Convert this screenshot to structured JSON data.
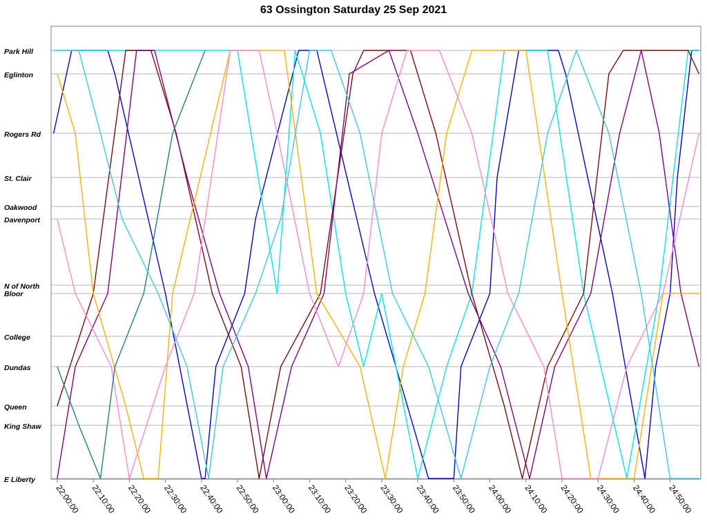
{
  "chart_data": {
    "type": "line",
    "title": "63 Ossington Saturday 25 Sep 2021",
    "xlabel": "",
    "ylabel": "",
    "x_ticks": [
      "22:00:00",
      "22:10:00",
      "22:20:00",
      "22:30:00",
      "22:40:00",
      "22:50:00",
      "23:00:00",
      "23:10:00",
      "23:20:00",
      "23:30:00",
      "23:40:00",
      "23:50:00",
      "24:00:00",
      "24:10:00",
      "24:20:00",
      "24:30:00",
      "24:40:00",
      "24:50:00"
    ],
    "xlim": [
      "22:00:00",
      "24:58:00"
    ],
    "stops": [
      "Park Hill",
      "Eglinton",
      "Rogers Rd",
      "St. Clair",
      "Oakwood",
      "Davenport",
      "N of North",
      "Bloor",
      "College",
      "Dundas",
      "Queen",
      "King Shaw",
      "E Liberty"
    ],
    "grid": true,
    "legend": "none",
    "series_colors": [
      "#0000cd",
      "#00e5ee",
      "#7b0b0b",
      "#7f007f",
      "#ffb000",
      "#ff88cc",
      "#1e8080",
      "#3cc8e0"
    ],
    "series": [
      {
        "color": "#0000cd",
        "points": [
          [
            "21:59:00",
            "Rogers Rd"
          ],
          [
            "22:04:00",
            "Park Hill"
          ],
          [
            "22:14:00",
            "Park Hill"
          ],
          [
            "22:16:00",
            "Eglinton"
          ],
          [
            "22:30:00",
            "Bloor"
          ],
          [
            "22:40:00",
            "E Liberty"
          ],
          [
            "22:41:00",
            "E Liberty"
          ],
          [
            "22:44:00",
            "Dundas"
          ],
          [
            "22:52:00",
            "Bloor"
          ],
          [
            "22:55:00",
            "Davenport"
          ],
          [
            "23:07:00",
            "Park Hill"
          ],
          [
            "23:12:00",
            "Park Hill"
          ],
          [
            "23:28:00",
            "Bloor"
          ],
          [
            "23:43:00",
            "E Liberty"
          ],
          [
            "23:50:00",
            "E Liberty"
          ],
          [
            "23:52:00",
            "Dundas"
          ],
          [
            "24:00:00",
            "Bloor"
          ],
          [
            "24:02:00",
            "St. Clair"
          ],
          [
            "24:08:00",
            "Park Hill"
          ],
          [
            "24:19:00",
            "Park Hill"
          ],
          [
            "24:21:00",
            "Eglinton"
          ],
          [
            "24:34:00",
            "Bloor"
          ],
          [
            "24:43:00",
            "E Liberty"
          ],
          [
            "24:46:00",
            "Dundas"
          ],
          [
            "24:50:00",
            "Bloor"
          ],
          [
            "24:52:00",
            "St. Clair"
          ],
          [
            "24:56:00",
            "Park Hill"
          ],
          [
            "24:58:00",
            "Park Hill"
          ]
        ]
      },
      {
        "color": "#00e5ee",
        "points": [
          [
            "21:59:00",
            "Park Hill"
          ],
          [
            "22:40:00",
            "Park Hill"
          ],
          [
            "22:50:00",
            "Park Hill"
          ],
          [
            "23:01:00",
            "Bloor"
          ],
          [
            "23:06:00",
            "Park Hill"
          ],
          [
            "23:13:00",
            "Rogers Rd"
          ],
          [
            "23:20:00",
            "Bloor"
          ],
          [
            "23:25:00",
            "Dundas"
          ],
          [
            "23:30:00",
            "Bloor"
          ],
          [
            "23:40:00",
            "E Liberty"
          ],
          [
            "23:48:00",
            "Dundas"
          ],
          [
            "23:55:00",
            "Bloor"
          ],
          [
            "24:04:00",
            "Park Hill"
          ],
          [
            "24:16:00",
            "Park Hill"
          ],
          [
            "24:26:00",
            "Bloor"
          ],
          [
            "24:38:00",
            "E Liberty"
          ],
          [
            "24:47:00",
            "Bloor"
          ],
          [
            "24:55:00",
            "Park Hill"
          ],
          [
            "24:58:00",
            "Park Hill"
          ]
        ]
      },
      {
        "color": "#7b0b0b",
        "points": [
          [
            "22:00:00",
            "Queen"
          ],
          [
            "22:10:00",
            "Bloor"
          ],
          [
            "22:19:00",
            "Park Hill"
          ],
          [
            "22:26:00",
            "Park Hill"
          ],
          [
            "22:33:00",
            "Rogers Rd"
          ],
          [
            "22:43:00",
            "Bloor"
          ],
          [
            "22:51:00",
            "Dundas"
          ],
          [
            "22:56:00",
            "E Liberty"
          ],
          [
            "23:02:00",
            "Dundas"
          ],
          [
            "23:13:00",
            "Bloor"
          ],
          [
            "23:22:00",
            "Eglinton"
          ],
          [
            "23:25:00",
            "Park Hill"
          ],
          [
            "23:38:00",
            "Park Hill"
          ],
          [
            "23:45:00",
            "Rogers Rd"
          ],
          [
            "23:55:00",
            "Bloor"
          ],
          [
            "24:04:00",
            "Queen"
          ],
          [
            "24:09:00",
            "E Liberty"
          ],
          [
            "24:16:00",
            "Dundas"
          ],
          [
            "24:26:00",
            "Bloor"
          ],
          [
            "24:33:00",
            "Eglinton"
          ],
          [
            "24:37:00",
            "Park Hill"
          ],
          [
            "24:55:00",
            "Park Hill"
          ],
          [
            "24:58:00",
            "Eglinton"
          ]
        ]
      },
      {
        "color": "#7f007f",
        "points": [
          [
            "22:00:00",
            "E Liberty"
          ],
          [
            "22:05:00",
            "Dundas"
          ],
          [
            "22:14:00",
            "Bloor"
          ],
          [
            "22:22:00",
            "Park Hill"
          ],
          [
            "22:27:00",
            "Park Hill"
          ],
          [
            "22:36:00",
            "St. Clair"
          ],
          [
            "22:45:00",
            "Bloor"
          ],
          [
            "22:53:00",
            "Dundas"
          ],
          [
            "22:58:00",
            "E Liberty"
          ],
          [
            "23:05:00",
            "Dundas"
          ],
          [
            "23:14:00",
            "Bloor"
          ],
          [
            "23:21:00",
            "Eglinton"
          ],
          [
            "23:32:00",
            "Park Hill"
          ],
          [
            "23:40:00",
            "Rogers Rd"
          ],
          [
            "23:54:00",
            "Bloor"
          ],
          [
            "24:03:00",
            "Dundas"
          ],
          [
            "24:11:00",
            "E Liberty"
          ],
          [
            "24:18:00",
            "Dundas"
          ],
          [
            "24:28:00",
            "Bloor"
          ],
          [
            "24:36:00",
            "Rogers Rd"
          ],
          [
            "24:42:00",
            "Park Hill"
          ],
          [
            "24:47:00",
            "Rogers Rd"
          ],
          [
            "24:53:00",
            "Bloor"
          ],
          [
            "24:58:00",
            "Dundas"
          ]
        ]
      },
      {
        "color": "#ffb000",
        "points": [
          [
            "22:00:00",
            "Eglinton"
          ],
          [
            "22:05:00",
            "Rogers Rd"
          ],
          [
            "22:10:00",
            "Bloor"
          ],
          [
            "22:19:00",
            "Queen"
          ],
          [
            "22:24:00",
            "E Liberty"
          ],
          [
            "22:28:00",
            "E Liberty"
          ],
          [
            "22:32:00",
            "Bloor"
          ],
          [
            "22:48:00",
            "Park Hill"
          ],
          [
            "22:57:00",
            "Park Hill"
          ],
          [
            "23:03:00",
            "Park Hill"
          ],
          [
            "23:12:00",
            "Bloor"
          ],
          [
            "23:24:00",
            "Dundas"
          ],
          [
            "23:31:00",
            "E Liberty"
          ],
          [
            "23:36:00",
            "Dundas"
          ],
          [
            "23:42:00",
            "Bloor"
          ],
          [
            "23:48:00",
            "Rogers Rd"
          ],
          [
            "23:55:00",
            "Park Hill"
          ],
          [
            "24:10:00",
            "Park Hill"
          ],
          [
            "24:20:00",
            "Bloor"
          ],
          [
            "24:28:00",
            "E Liberty"
          ],
          [
            "24:33:00",
            "E Liberty"
          ],
          [
            "24:40:00",
            "E Liberty"
          ],
          [
            "24:48:00",
            "Bloor"
          ],
          [
            "24:58:00",
            "Bloor"
          ]
        ]
      },
      {
        "color": "#ff88cc",
        "points": [
          [
            "22:00:00",
            "Davenport"
          ],
          [
            "22:05:00",
            "Bloor"
          ],
          [
            "22:15:00",
            "Dundas"
          ],
          [
            "22:20:00",
            "E Liberty"
          ],
          [
            "22:30:00",
            "Dundas"
          ],
          [
            "22:38:00",
            "Bloor"
          ],
          [
            "22:48:00",
            "Park Hill"
          ],
          [
            "22:56:00",
            "Park Hill"
          ],
          [
            "23:01:00",
            "Rogers Rd"
          ],
          [
            "23:10:00",
            "Bloor"
          ],
          [
            "23:18:00",
            "Dundas"
          ],
          [
            "23:25:00",
            "Bloor"
          ],
          [
            "23:30:00",
            "Rogers Rd"
          ],
          [
            "23:37:00",
            "Park Hill"
          ],
          [
            "23:46:00",
            "Park Hill"
          ],
          [
            "23:55:00",
            "Rogers Rd"
          ],
          [
            "24:05:00",
            "Bloor"
          ],
          [
            "24:15:00",
            "Dundas"
          ],
          [
            "24:20:00",
            "E Liberty"
          ],
          [
            "24:30:00",
            "E Liberty"
          ],
          [
            "24:38:00",
            "Dundas"
          ],
          [
            "24:48:00",
            "Bloor"
          ],
          [
            "24:58:00",
            "Rogers Rd"
          ]
        ]
      },
      {
        "color": "#1e8080",
        "points": [
          [
            "22:00:00",
            "Dundas"
          ],
          [
            "22:06:00",
            "King Shaw"
          ],
          [
            "22:12:00",
            "E Liberty"
          ],
          [
            "22:16:00",
            "Dundas"
          ],
          [
            "22:24:00",
            "Bloor"
          ],
          [
            "22:32:00",
            "Rogers Rd"
          ],
          [
            "22:41:00",
            "Park Hill"
          ]
        ]
      },
      {
        "color": "#3cc8e0",
        "points": [
          [
            "22:00:00",
            "Park Hill"
          ],
          [
            "22:06:00",
            "Park Hill"
          ],
          [
            "22:12:00",
            "Rogers Rd"
          ],
          [
            "22:18:00",
            "Davenport"
          ],
          [
            "22:28:00",
            "Bloor"
          ],
          [
            "22:36:00",
            "Dundas"
          ],
          [
            "22:42:00",
            "E Liberty"
          ],
          [
            "22:46:00",
            "Dundas"
          ],
          [
            "22:55:00",
            "Bloor"
          ],
          [
            "23:02:00",
            "Davenport"
          ],
          [
            "23:10:00",
            "Park Hill"
          ],
          [
            "23:16:00",
            "Park Hill"
          ],
          [
            "23:24:00",
            "Rogers Rd"
          ],
          [
            "23:33:00",
            "Bloor"
          ],
          [
            "23:43:00",
            "Dundas"
          ],
          [
            "23:52:00",
            "E Liberty"
          ],
          [
            "24:00:00",
            "Dundas"
          ],
          [
            "24:08:00",
            "Bloor"
          ],
          [
            "24:16:00",
            "Rogers Rd"
          ],
          [
            "24:24:00",
            "Park Hill"
          ],
          [
            "24:33:00",
            "Rogers Rd"
          ],
          [
            "24:42:00",
            "Bloor"
          ],
          [
            "24:50:00",
            "E Liberty"
          ],
          [
            "24:58:00",
            "E Liberty"
          ]
        ]
      }
    ]
  }
}
